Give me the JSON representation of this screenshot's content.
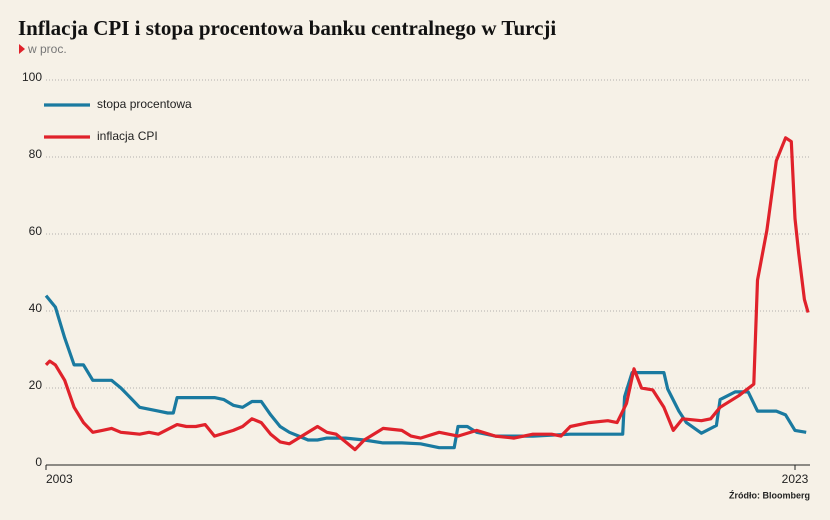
{
  "chart_data": {
    "type": "line",
    "title": "Inflacja CPI i stopa procentowa banku centralnego w Turcji",
    "subtitle": "w proc.",
    "source": "Źródło: Bloomberg",
    "xlim": [
      2003,
      2023.4
    ],
    "xticks": [
      2003,
      2023
    ],
    "ylim": [
      0,
      100
    ],
    "yticks": [
      0,
      20,
      40,
      60,
      80,
      100
    ],
    "grid": true,
    "legend": "upper left",
    "series": [
      {
        "name": "stopa procentowa",
        "color": "#1a7aa0",
        "x": [
          2003,
          2003.25,
          2003.5,
          2003.75,
          2004,
          2004.25,
          2004.5,
          2004.75,
          2005,
          2005.25,
          2005.5,
          2005.75,
          2006,
          2006.25,
          2006.4,
          2006.5,
          2007,
          2007.5,
          2007.75,
          2008,
          2008.25,
          2008.5,
          2008.75,
          2009,
          2009.25,
          2009.5,
          2009.75,
          2010,
          2010.25,
          2010.5,
          2011,
          2011.5,
          2012,
          2012.5,
          2013,
          2013.5,
          2013.9,
          2014,
          2014.25,
          2014.5,
          2015,
          2016,
          2017,
          2018,
          2018.4,
          2018.45,
          2018.65,
          2019.5,
          2019.6,
          2019.9,
          2020.1,
          2020.5,
          2020.9,
          2021,
          2021.4,
          2021.75,
          2022,
          2022.5,
          2022.75,
          2023,
          2023.3
        ],
        "values": [
          44,
          41,
          33,
          26,
          26,
          22,
          22,
          22,
          20,
          17.5,
          15,
          14.5,
          14,
          13.5,
          13.5,
          17.5,
          17.5,
          17.5,
          17,
          15.5,
          15,
          16.5,
          16.5,
          13,
          10,
          8.5,
          7.5,
          6.5,
          6.5,
          7,
          7,
          6.5,
          5.75,
          5.75,
          5.5,
          4.5,
          4.5,
          10,
          10,
          8.5,
          7.5,
          7.5,
          8,
          8,
          8,
          17.75,
          24,
          24,
          19.75,
          14,
          11,
          8.25,
          10.25,
          17,
          19,
          19,
          14,
          14,
          13,
          9,
          8.5
        ]
      },
      {
        "name": "inflacja CPI",
        "color": "#e0222b",
        "x": [
          2003,
          2003.1,
          2003.25,
          2003.5,
          2003.75,
          2004,
          2004.25,
          2004.5,
          2004.75,
          2005,
          2005.5,
          2005.75,
          2006,
          2006.5,
          2006.75,
          2007,
          2007.25,
          2007.5,
          2008,
          2008.25,
          2008.5,
          2008.75,
          2009,
          2009.25,
          2009.5,
          2010,
          2010.25,
          2010.5,
          2010.75,
          2011,
          2011.25,
          2011.5,
          2012,
          2012.5,
          2012.75,
          2013,
          2013.5,
          2014,
          2014.5,
          2015,
          2015.5,
          2016,
          2016.5,
          2016.75,
          2017,
          2017.5,
          2018,
          2018.25,
          2018.5,
          2018.7,
          2018.9,
          2019.2,
          2019.5,
          2019.75,
          2020,
          2020.5,
          2020.75,
          2021,
          2021.5,
          2021.9,
          2022,
          2022.25,
          2022.5,
          2022.75,
          2022.9,
          2023,
          2023.1,
          2023.25,
          2023.35
        ],
        "values": [
          26,
          27,
          26,
          22,
          15,
          11,
          8.5,
          9,
          9.5,
          8.5,
          8,
          8.5,
          8,
          10.5,
          10,
          10,
          10.5,
          7.5,
          9,
          10,
          12,
          11,
          8,
          6,
          5.5,
          8.5,
          10,
          8.5,
          8,
          6,
          4,
          6.5,
          9.5,
          9,
          7.5,
          7,
          8.5,
          7.5,
          9,
          7.5,
          7,
          8,
          8,
          7.5,
          10,
          11,
          11.5,
          11,
          16,
          25,
          20,
          19.5,
          15,
          9,
          12,
          11.5,
          12,
          15,
          18,
          21,
          48,
          61,
          79,
          85,
          84,
          64,
          55,
          43,
          39.6
        ]
      }
    ]
  }
}
